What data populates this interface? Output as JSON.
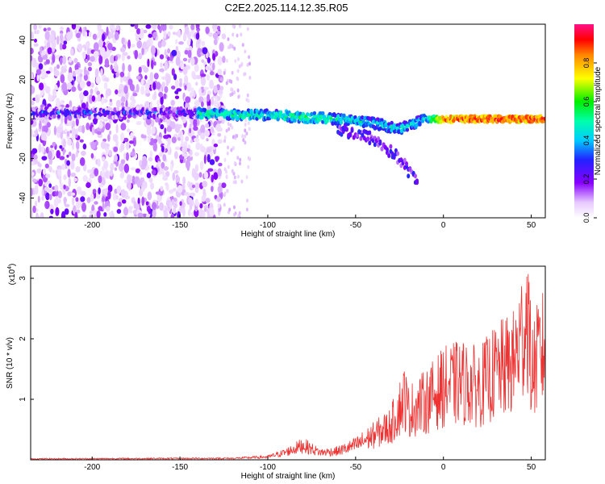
{
  "title": "C2E2.2025.114.12.35.R05",
  "chart_data": [
    {
      "type": "heatmap",
      "xlabel": "Height of straight line (km)",
      "ylabel": "Frequency (Hz)",
      "xlim": [
        -235,
        58
      ],
      "ylim": [
        -50,
        48
      ],
      "xticks": [
        -200,
        -150,
        -100,
        -50,
        0,
        50
      ],
      "yticks": [
        -40,
        -20,
        0,
        20,
        40
      ],
      "colorbar": {
        "label": "Normalized spectral amplitude",
        "range": [
          0,
          1
        ],
        "ticks": [
          "0.0",
          "0.2",
          "0.4",
          "0.6",
          "0.8"
        ],
        "tick_values": [
          0,
          0.2,
          0.4,
          0.6,
          0.8
        ]
      },
      "ridge": [
        {
          "x": -140,
          "f": 3,
          "amp": 0.55
        },
        {
          "x": -120,
          "f": 2,
          "amp": 0.5
        },
        {
          "x": -100,
          "f": 2,
          "amp": 0.5
        },
        {
          "x": -80,
          "f": 1,
          "amp": 0.55
        },
        {
          "x": -60,
          "f": 0,
          "amp": 0.5
        },
        {
          "x": -40,
          "f": -2,
          "amp": 0.45
        },
        {
          "x": -25,
          "f": -5,
          "amp": 0.45
        },
        {
          "x": -10,
          "f": 0,
          "amp": 0.45
        },
        {
          "x": 0,
          "f": 0,
          "amp": 0.85
        },
        {
          "x": 20,
          "f": 0,
          "amp": 0.9
        },
        {
          "x": 55,
          "f": 0,
          "amp": 0.9
        }
      ],
      "secondary_branch": [
        {
          "x": -60,
          "f": -5
        },
        {
          "x": -40,
          "f": -10
        },
        {
          "x": -25,
          "f": -20
        },
        {
          "x": -15,
          "f": -32
        }
      ]
    },
    {
      "type": "line",
      "xlabel": "Height of straight line (km)",
      "ylabel": "SNR (10 * v/v)",
      "multiplier": "(x10^4)",
      "xlim": [
        -235,
        58
      ],
      "ylim": [
        0,
        3.2
      ],
      "xticks": [
        -200,
        -150,
        -100,
        -50,
        0,
        50
      ],
      "yticks": [
        1,
        2,
        3
      ],
      "color": "#ee3333",
      "x": [
        -235,
        -120,
        -100,
        -90,
        -80,
        -70,
        -60,
        -50,
        -40,
        -30,
        -22,
        -20,
        -10,
        0,
        10,
        20,
        30,
        40,
        45,
        48,
        50,
        55,
        58
      ],
      "y": [
        0.02,
        0.03,
        0.06,
        0.15,
        0.3,
        0.15,
        0.18,
        0.3,
        0.5,
        0.7,
        1.3,
        1.0,
        1.2,
        1.5,
        1.6,
        1.5,
        1.8,
        2.0,
        2.6,
        3.1,
        1.8,
        2.2,
        2.3
      ]
    }
  ]
}
